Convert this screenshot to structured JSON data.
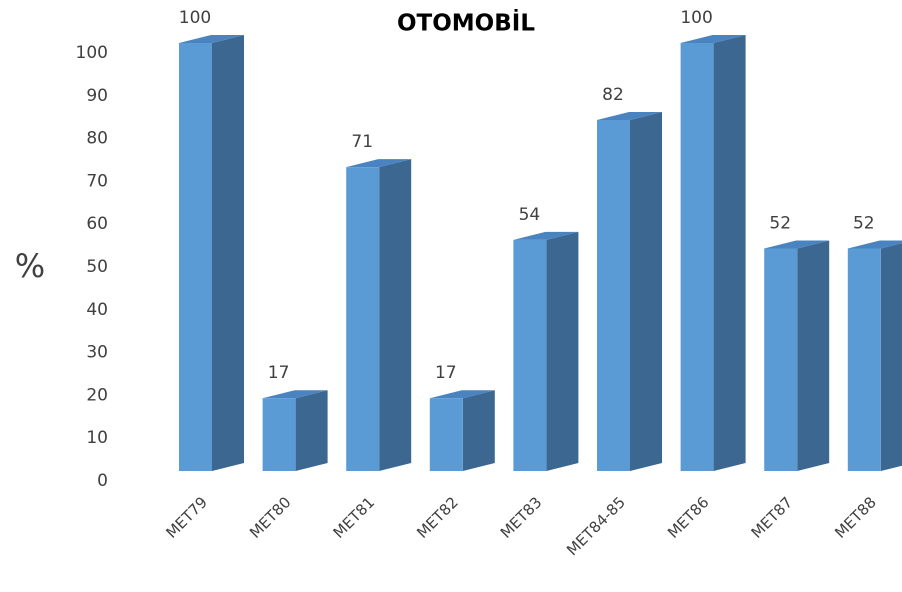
{
  "chart_data": {
    "type": "bar3d",
    "title": "OTOMOBİL",
    "ylabel": "%",
    "categories": [
      "MET79",
      "MET80",
      "MET81",
      "MET82",
      "MET83",
      "MET84-85",
      "MET86",
      "MET87",
      "MET88"
    ],
    "values": [
      100,
      17,
      71,
      17,
      54,
      82,
      100,
      52,
      52
    ],
    "color": "#5b9bd5",
    "ylim": [
      0,
      100
    ],
    "yticks": [
      0,
      10,
      20,
      30,
      40,
      50,
      60,
      70,
      80,
      90,
      100
    ],
    "grid": false
  }
}
